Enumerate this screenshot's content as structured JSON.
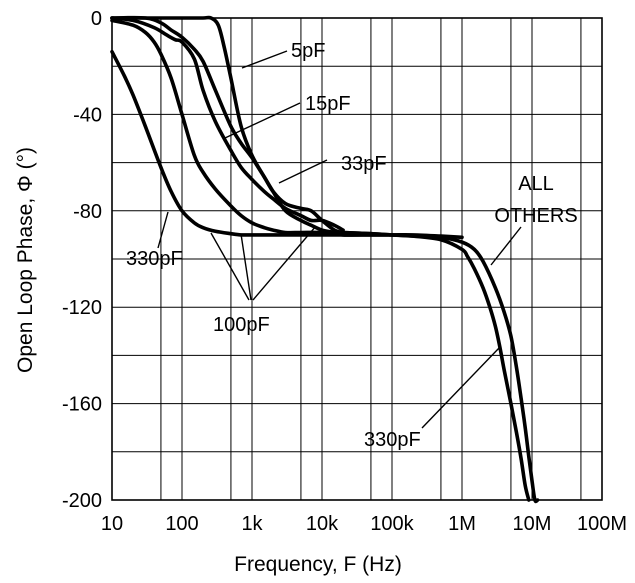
{
  "chart_data": {
    "type": "line",
    "title": "",
    "xlabel": "Frequency, F (Hz)",
    "ylabel": "Open Loop Phase, Φ (°)",
    "x_scale": "log",
    "xlim": [
      10,
      100000000
    ],
    "ylim": [
      -200,
      0
    ],
    "grid": true,
    "x_ticks": [
      {
        "value": 10,
        "label": "10"
      },
      {
        "value": 100,
        "label": "100"
      },
      {
        "value": 1000,
        "label": "1k"
      },
      {
        "value": 10000,
        "label": "10k"
      },
      {
        "value": 100000,
        "label": "100k"
      },
      {
        "value": 1000000,
        "label": "1M"
      },
      {
        "value": 10000000,
        "label": "10M"
      },
      {
        "value": 100000000,
        "label": "100M"
      }
    ],
    "y_ticks": [
      {
        "value": 0,
        "label": "0"
      },
      {
        "value": -40,
        "label": "-40"
      },
      {
        "value": -80,
        "label": "-80"
      },
      {
        "value": -120,
        "label": "-120"
      },
      {
        "value": -160,
        "label": "-160"
      },
      {
        "value": -200,
        "label": "-200"
      }
    ],
    "series": [
      {
        "x": [
          10,
          100,
          200,
          260,
          330,
          400,
          500,
          700,
          1000,
          1500,
          2000,
          3000,
          5000,
          7000,
          10000,
          15000,
          20000,
          50000,
          100000,
          200000,
          500000,
          1000000
        ],
        "y": [
          0,
          0,
          0,
          0,
          -3,
          -12,
          -25,
          -45,
          -57,
          -66,
          -72,
          -80,
          -84,
          -86,
          -88,
          -89,
          -90,
          -90,
          -90,
          -90,
          -90.5,
          -91
        ]
      },
      {
        "x": [
          10,
          30,
          50,
          70,
          100,
          150,
          200,
          300,
          500,
          700,
          1000,
          1500,
          2000,
          3000,
          5000,
          7000,
          10000,
          15000,
          20000
        ],
        "y": [
          0,
          0,
          -2,
          -5,
          -8,
          -13,
          -18,
          -30,
          -45,
          -52,
          -58,
          -66,
          -72,
          -77,
          -79,
          -80,
          -84,
          -88,
          -89
        ]
      },
      {
        "x": [
          10,
          20,
          40,
          60,
          80,
          100,
          150,
          200,
          300,
          500,
          700,
          1000,
          1500,
          2000,
          3000,
          5000,
          7000,
          10000,
          15000,
          20000
        ],
        "y": [
          0,
          -1,
          -4,
          -7,
          -9,
          -10,
          -17,
          -30,
          -43,
          -55,
          -62,
          -67,
          -72,
          -75,
          -79,
          -82,
          -84,
          -84,
          -86,
          -88
        ]
      },
      {
        "x": [
          10,
          20,
          30,
          40,
          50,
          70,
          100,
          150,
          200,
          300,
          500,
          700,
          1000,
          1500,
          2000,
          3000,
          5000,
          10000,
          20000
        ],
        "y": [
          -1,
          -3,
          -6,
          -10,
          -15,
          -25,
          -40,
          -57,
          -64,
          -71,
          -78,
          -82,
          -85,
          -87,
          -88,
          -89,
          -89,
          -89,
          -89.5
        ]
      },
      {
        "x": [
          10,
          15,
          20,
          30,
          50,
          70,
          100,
          150,
          200,
          300,
          500,
          700,
          1000,
          2000,
          5000,
          10000,
          20000,
          50000,
          100000
        ],
        "y": [
          -14,
          -24,
          -32,
          -45,
          -62,
          -72,
          -80,
          -85,
          -87,
          -88.5,
          -89.5,
          -90,
          -90,
          -90,
          -90,
          -90,
          -90,
          -90,
          -90
        ]
      },
      {
        "x": [
          20000,
          50000,
          100000,
          200000,
          500000,
          1000000,
          1500000,
          2000000,
          3000000,
          4000000,
          5000000,
          6000000,
          7000000,
          8000000,
          9000000,
          10000000,
          11000000,
          12000000
        ],
        "y": [
          -89,
          -89.5,
          -90,
          -90.5,
          -91,
          -93,
          -96,
          -101,
          -112,
          -122,
          -132,
          -145,
          -158,
          -170,
          -182,
          -192,
          -200,
          -200
        ]
      },
      {
        "x": [
          20000,
          50000,
          100000,
          200000,
          500000,
          1000000,
          1200000,
          1500000,
          2000000,
          2500000,
          3000000,
          3500000,
          4000000,
          5000000,
          6000000,
          7000000,
          8000000,
          9000000
        ],
        "y": [
          -89,
          -89.5,
          -90,
          -90.5,
          -92,
          -96,
          -99,
          -104,
          -112,
          -120,
          -128,
          -137,
          -146,
          -160,
          -172,
          -183,
          -194,
          -200
        ]
      }
    ],
    "annotations": [
      {
        "text": "5pF"
      },
      {
        "text": "15pF"
      },
      {
        "text": "33pF"
      },
      {
        "text": "ALL"
      },
      {
        "text": "OTHERS"
      },
      {
        "text": "330pF"
      },
      {
        "text": "100pF"
      },
      {
        "text": "330pF"
      }
    ]
  }
}
